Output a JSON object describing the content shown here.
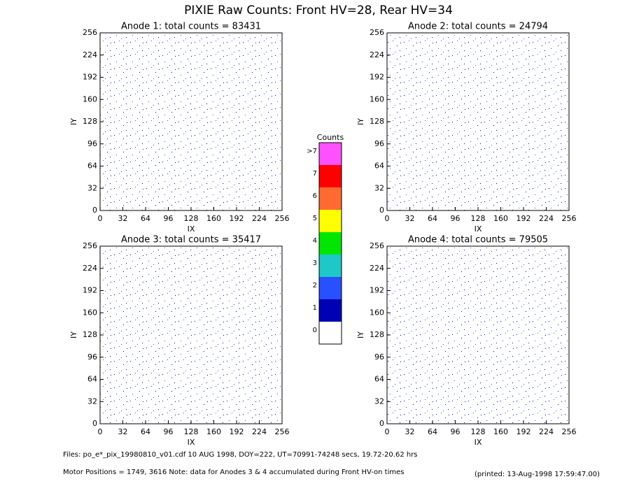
{
  "title": "PIXIE Raw Counts:  Front HV=28, Rear HV=34",
  "chart_data": [
    {
      "type": "heatmap",
      "title": "Anode 1: total counts = 83431",
      "x_label": "IX",
      "y_label": "IY",
      "xlim": [
        0,
        256
      ],
      "ylim": [
        0,
        256
      ],
      "xticks": [
        0,
        32,
        64,
        96,
        128,
        160,
        192,
        224,
        256
      ],
      "yticks": [
        0,
        32,
        64,
        96,
        128,
        160,
        192,
        224,
        256
      ]
    },
    {
      "type": "heatmap",
      "title": "Anode 2: total counts = 24794",
      "x_label": "IX",
      "y_label": "IY",
      "xlim": [
        0,
        256
      ],
      "ylim": [
        0,
        256
      ],
      "xticks": [
        0,
        32,
        64,
        96,
        128,
        160,
        192,
        224,
        256
      ],
      "yticks": [
        0,
        32,
        64,
        96,
        128,
        160,
        192,
        224,
        256
      ]
    },
    {
      "type": "heatmap",
      "title": "Anode 3: total counts = 35417",
      "x_label": "IX",
      "y_label": "IY",
      "xlim": [
        0,
        256
      ],
      "ylim": [
        0,
        256
      ],
      "xticks": [
        0,
        32,
        64,
        96,
        128,
        160,
        192,
        224,
        256
      ],
      "yticks": [
        0,
        32,
        64,
        96,
        128,
        160,
        192,
        224,
        256
      ]
    },
    {
      "type": "heatmap",
      "title": "Anode 4: total counts = 79505",
      "x_label": "IX",
      "y_label": "IY",
      "xlim": [
        0,
        256
      ],
      "ylim": [
        0,
        256
      ],
      "xticks": [
        0,
        32,
        64,
        96,
        128,
        160,
        192,
        224,
        256
      ],
      "yticks": [
        0,
        32,
        64,
        96,
        128,
        160,
        192,
        224,
        256
      ]
    }
  ],
  "colorbar": {
    "title": "Counts",
    "labels": [
      "0",
      "1",
      "2",
      "3",
      "4",
      "5",
      "6",
      "7",
      ">7"
    ],
    "colors": [
      "#ffffff",
      "#0000b4",
      "#2850ff",
      "#1ec8c8",
      "#00e600",
      "#ffff00",
      "#ff6a32",
      "#ff0000",
      "#ff50ff"
    ]
  },
  "footer": {
    "files": "Files: po_e*_pix_19980810_v01.cdf     10 AUG 1998, DOY=222, UT=70991-74248 secs, 19.72-20.62 hrs",
    "motor": "Motor Positions = 1749, 3616    Note: data for Anodes 3 & 4 accumulated during Front HV-on times",
    "printed": "(printed: 13-Aug-1998 17:59:47.00)"
  }
}
